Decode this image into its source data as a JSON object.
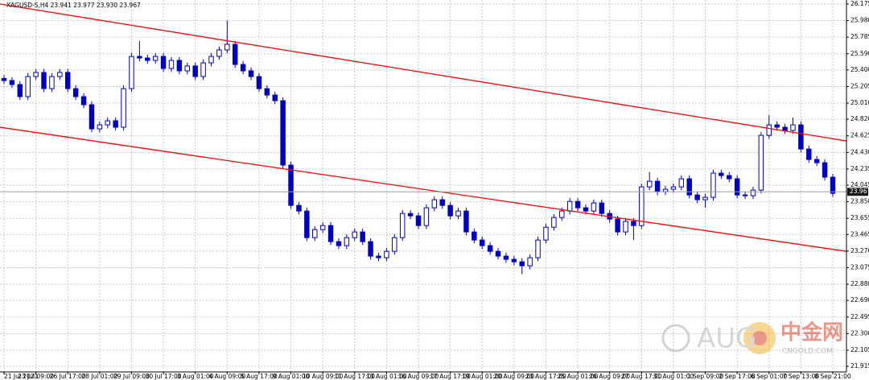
{
  "chart_data": {
    "type": "candlestick",
    "title": "XAGUSD-S,H4  23.941 23.977 23.930 23.967",
    "color": "#0000c0",
    "grid": true,
    "categories": [
      "21 Jul 2021",
      null,
      null,
      null,
      "23 Jul 09:00",
      null,
      null,
      null,
      "26 Jul 17:00",
      null,
      null,
      null,
      "28 Jul 01:00",
      null,
      null,
      null,
      "29 Jul 09:00",
      null,
      null,
      null,
      "30 Jul 17:00",
      null,
      null,
      null,
      "3 Aug 01:00",
      null,
      null,
      null,
      "4 Aug 09:00",
      null,
      null,
      null,
      "5 Aug 17:00",
      null,
      null,
      null,
      "9 Aug 01:00",
      null,
      null,
      null,
      "10 Aug 09:00",
      null,
      null,
      null,
      "11 Aug 17:00",
      null,
      null,
      null,
      "13 Aug 01:00",
      null,
      null,
      null,
      "16 Aug 09:00",
      null,
      null,
      null,
      "17 Aug 17:00",
      null,
      null,
      null,
      "19 Aug 01:00",
      null,
      null,
      null,
      "20 Aug 09:00",
      null,
      null,
      null,
      "23 Aug 17:00",
      null,
      null,
      null,
      "25 Aug 01:00",
      null,
      null,
      null,
      "26 Aug 09:00",
      null,
      null,
      null,
      "27 Aug 17:00",
      null,
      null,
      null,
      "31 Aug 01:00",
      null,
      null,
      null,
      "1 Sep 09:00",
      null,
      null,
      null,
      "2 Sep 17:00",
      null,
      null,
      null,
      "6 Sep 01:00",
      null,
      null,
      null,
      "7 Sep 13:00",
      null,
      null,
      null,
      "8 Sep 21:00"
    ],
    "open": [
      25.3,
      25.275,
      25.228,
      25.086,
      25.322,
      25.37,
      25.18,
      25.322,
      25.37,
      25.18,
      25.086,
      24.991,
      24.707,
      24.754,
      24.802,
      24.726,
      25.18,
      25.559,
      25.54,
      25.512,
      25.559,
      25.417,
      25.512,
      25.389,
      25.446,
      25.322,
      25.483,
      25.559,
      25.635,
      25.701,
      25.464,
      25.389,
      25.322,
      25.18,
      25.105,
      25.038,
      24.281,
      23.807,
      23.741,
      23.428,
      23.523,
      23.57,
      23.381,
      23.334,
      23.428,
      23.495,
      23.381,
      23.211,
      23.192,
      23.267,
      23.428,
      23.712,
      23.684,
      23.57,
      23.779,
      23.874,
      23.807,
      23.684,
      23.741,
      23.495,
      23.4,
      23.334,
      23.267,
      23.211,
      23.173,
      23.144,
      23.097,
      23.192,
      23.4,
      23.551,
      23.665,
      23.741,
      23.854,
      23.779,
      23.741,
      23.836,
      23.712,
      23.646,
      23.495,
      23.619,
      23.57,
      24.025,
      24.091,
      23.968,
      23.997,
      24.025,
      24.12,
      23.93,
      23.874,
      23.902,
      24.186,
      24.158,
      24.12,
      23.93,
      23.921,
      23.987,
      24.631,
      24.754,
      24.726,
      24.688,
      24.754,
      24.47,
      24.347,
      24.309,
      24.139
    ],
    "high": [
      25.34,
      25.315,
      25.268,
      25.362,
      25.41,
      25.41,
      25.362,
      25.41,
      25.41,
      25.22,
      25.126,
      25.031,
      24.794,
      24.842,
      24.842,
      25.22,
      25.599,
      25.74,
      25.58,
      25.599,
      25.599,
      25.552,
      25.552,
      25.486,
      25.486,
      25.523,
      25.599,
      25.675,
      25.98,
      25.741,
      25.504,
      25.429,
      25.362,
      25.22,
      25.145,
      25.078,
      24.321,
      23.847,
      23.781,
      23.563,
      23.61,
      23.61,
      23.421,
      23.468,
      23.535,
      23.535,
      23.421,
      23.251,
      23.307,
      23.468,
      23.752,
      23.752,
      23.724,
      23.819,
      23.914,
      23.914,
      23.847,
      23.781,
      23.781,
      23.535,
      23.44,
      23.374,
      23.307,
      23.251,
      23.213,
      23.184,
      23.232,
      23.44,
      23.591,
      23.705,
      23.781,
      23.894,
      23.894,
      23.819,
      23.876,
      23.876,
      23.752,
      23.686,
      23.659,
      23.659,
      24.065,
      24.2,
      24.131,
      24.037,
      24.065,
      24.16,
      24.16,
      23.97,
      23.942,
      24.226,
      24.226,
      24.198,
      24.16,
      23.97,
      24.027,
      24.671,
      24.87,
      24.794,
      24.766,
      24.84,
      24.794,
      24.51,
      24.387,
      24.349,
      24.179
    ],
    "low": [
      25.235,
      25.188,
      25.046,
      25.046,
      25.282,
      25.14,
      25.14,
      25.282,
      25.14,
      25.046,
      24.951,
      24.667,
      24.667,
      24.714,
      24.686,
      24.686,
      25.14,
      25.5,
      25.472,
      25.472,
      25.377,
      25.377,
      25.349,
      25.349,
      25.282,
      25.282,
      25.443,
      25.519,
      25.595,
      25.424,
      25.349,
      25.282,
      25.14,
      25.065,
      24.998,
      24.241,
      23.767,
      23.701,
      23.388,
      23.388,
      23.483,
      23.341,
      23.294,
      23.294,
      23.388,
      23.341,
      23.171,
      23.152,
      23.152,
      23.227,
      23.388,
      23.644,
      23.53,
      23.53,
      23.739,
      23.767,
      23.644,
      23.644,
      23.455,
      23.36,
      23.294,
      23.227,
      23.171,
      23.133,
      23.104,
      23.0,
      23.057,
      23.152,
      23.36,
      23.511,
      23.625,
      23.701,
      23.739,
      23.701,
      23.701,
      23.672,
      23.606,
      23.455,
      23.455,
      23.4,
      23.53,
      23.985,
      23.928,
      23.928,
      23.957,
      23.985,
      23.89,
      23.834,
      23.78,
      23.862,
      24.118,
      24.08,
      23.89,
      23.881,
      23.881,
      23.947,
      24.591,
      24.686,
      24.648,
      24.648,
      24.43,
      24.307,
      24.269,
      24.099,
      23.909
    ],
    "close": [
      25.275,
      25.228,
      25.086,
      25.322,
      25.37,
      25.18,
      25.322,
      25.37,
      25.18,
      25.086,
      24.991,
      24.707,
      24.754,
      24.802,
      24.726,
      25.18,
      25.559,
      25.54,
      25.512,
      25.559,
      25.417,
      25.512,
      25.389,
      25.446,
      25.322,
      25.483,
      25.559,
      25.635,
      25.701,
      25.464,
      25.389,
      25.322,
      25.18,
      25.105,
      25.038,
      24.281,
      23.807,
      23.741,
      23.428,
      23.523,
      23.57,
      23.381,
      23.334,
      23.428,
      23.495,
      23.381,
      23.211,
      23.192,
      23.267,
      23.428,
      23.712,
      23.684,
      23.57,
      23.779,
      23.874,
      23.807,
      23.684,
      23.741,
      23.495,
      23.4,
      23.334,
      23.267,
      23.211,
      23.173,
      23.144,
      23.097,
      23.192,
      23.4,
      23.551,
      23.665,
      23.741,
      23.854,
      23.779,
      23.741,
      23.836,
      23.712,
      23.646,
      23.495,
      23.619,
      23.57,
      24.025,
      24.091,
      23.968,
      23.997,
      24.025,
      24.12,
      23.93,
      23.874,
      23.902,
      24.186,
      24.158,
      24.12,
      23.93,
      23.921,
      23.987,
      24.631,
      24.754,
      24.726,
      24.688,
      24.754,
      24.47,
      24.347,
      24.309,
      24.139,
      23.949
    ],
    "ylim": [
      21.849,
      26.222
    ],
    "yticks": [
      26.175,
      {
        "value": 25.98,
        "label": "25.980"
      },
      25.785,
      {
        "value": 25.59,
        "label": "25.590"
      },
      {
        "value": 25.4,
        "label": "25.400"
      },
      25.205,
      {
        "value": 25.01,
        "label": "25.010"
      },
      {
        "value": 24.82,
        "label": "24.820"
      },
      24.625,
      {
        "value": 24.43,
        "label": "24.430"
      },
      24.235,
      24.045,
      {
        "value": 23.85,
        "label": "23.850"
      },
      23.655,
      23.465,
      {
        "value": 23.27,
        "label": "23.270"
      },
      23.075,
      {
        "value": 22.88,
        "label": "22.880"
      },
      {
        "value": 22.69,
        "label": "22.690"
      },
      22.495,
      {
        "value": 22.3,
        "label": "22.300"
      },
      22.105,
      21.915
    ],
    "current_price": 23.967,
    "channel_lines": [
      {
        "color": "#ff0000",
        "values": [
          26.175,
          24.565
        ]
      },
      {
        "color": "#ff0000",
        "values": [
          24.726,
          23.267
        ]
      }
    ],
    "watermark": {
      "text": "AUG",
      "brand": "中金网",
      "site": "CNGOLD.COM"
    }
  }
}
